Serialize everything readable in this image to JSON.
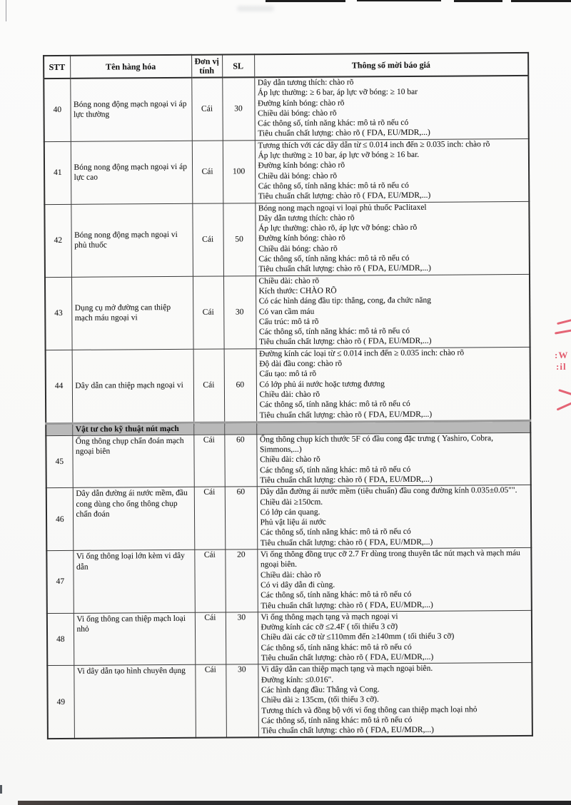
{
  "table": {
    "columns": [
      "STT",
      "Tên hàng hóa",
      "Đơn vị tính",
      "SL",
      "Thông số mời báo giá"
    ],
    "rows": [
      {
        "type": "item",
        "stt": "40",
        "name": "Bóng nong động mạch ngoại vi áp lực thường",
        "unit": "Cái",
        "qty": "30",
        "specs": [
          "Dây dẫn tương thích: chào rõ",
          "Áp lực thường: ≥ 6 bar, áp lực vỡ bóng: ≥ 10 bar",
          "Đường kính bóng: chào rõ",
          "Chiều dài bóng: chào rõ",
          "Các thông số, tính năng khác: mô tả rõ nếu có",
          "Tiêu chuẩn chất lượng: chào rõ ( FDA, EU/MDR,...)"
        ]
      },
      {
        "type": "item",
        "stt": "41",
        "name": "Bóng nong động mạch ngoại vi áp lực cao",
        "unit": "Cái",
        "qty": "100",
        "specs": [
          "Tương thích với các dây dẫn từ ≤ 0.014 inch đến ≥ 0.035 inch: chào rõ",
          "Áp lực thường ≥ 10 bar, áp lực vỡ bóng ≥ 16 bar.",
          "Đường kính bóng: chào rõ",
          "Chiều dài bóng: chào rõ",
          "Các thông số, tính năng khác: mô tả rõ nếu có",
          "Tiêu chuẩn chất lượng: chào rõ ( FDA, EU/MDR,...)"
        ]
      },
      {
        "type": "item",
        "stt": "42",
        "name": "Bóng nong động mạch ngoại vi phủ thuốc",
        "unit": "Cái",
        "qty": "50",
        "specs": [
          "Bóng nong mạch ngoại vi loại phủ thuốc Paclitaxel",
          "Dây dẫn tương thích: chào rõ",
          "Áp lực thường: chào rõ, áp lực vỡ bóng: chào rõ",
          "Đường kính bóng: chào rõ",
          "Chiều dài bóng: chào rõ",
          "Các thông số, tính năng khác: mô tả rõ nếu có",
          "Tiêu chuẩn chất lượng: chào rõ ( FDA, EU/MDR,...)"
        ]
      },
      {
        "type": "item",
        "stt": "43",
        "name": "Dụng cụ mở đường can thiệp mạch máu ngoại vi",
        "unit": "Cái",
        "qty": "30",
        "specs": [
          "Chiều dài: chào rõ",
          "Kích thước: CHÀO RÕ",
          "Có các hình dáng đầu tip: thẳng, cong, đa chức năng",
          "Có van cầm máu",
          "Cấu trúc: mô tả rõ",
          "Các thông số, tính năng khác: mô tả rõ nếu có",
          "Tiêu chuẩn chất lượng: chào rõ ( FDA, EU/MDR,...)"
        ]
      },
      {
        "type": "item",
        "stt": "44",
        "name": "Dây dẫn can thiệp mạch ngoại vi",
        "unit": "Cái",
        "qty": "60",
        "specs": [
          "Đường kính các loại từ ≤ 0.014 inch đến ≥ 0.035 inch: chào rõ",
          "Độ dài đầu cong: chào rõ",
          "Cấu tạo: mô tả rõ",
          "Có lớp phủ ái nước hoặc tương đương",
          "Chiều dài: chào rõ",
          "Các thông số, tính năng khác: mô tả rõ nếu có",
          "Tiêu chuẩn chất lượng: chào rõ ( FDA, EU/MDR,...)"
        ]
      },
      {
        "type": "section",
        "label": "Vật tư cho kỹ thuật nút mạch"
      },
      {
        "type": "item",
        "stt": "45",
        "name": "Ống thông chụp chẩn đoán mạch ngoại biên",
        "unit": "Cái",
        "qty": "60",
        "specs": [
          "Ống thông chụp kích thước 5F có đầu cong đặc trưng ( Yashiro, Cobra, Simmons,...)",
          "Chiều dài: chào rõ",
          "Các thông số, tính năng khác: mô tả rõ nếu có",
          "Tiêu chuẩn chất lượng: chào rõ ( FDA, EU/MDR,...)"
        ]
      },
      {
        "type": "item",
        "stt": "46",
        "name": "Dây dẫn đường ái nước mềm, đầu cong dùng cho ống thông chụp chẩn đoán",
        "unit": "Cái",
        "qty": "60",
        "specs": [
          "Dây dẫn đường ái nước mềm (tiêu chuẩn) đầu cong đường kính 0.035±0.05\"\".",
          "Chiều dài ≥150cm.",
          "Có lớp cản quang.",
          "Phủ vật liệu ái nước",
          "Các thông số, tính năng khác: mô tả rõ nếu có",
          "Tiêu chuẩn chất lượng: chào rõ ( FDA, EU/MDR,...)"
        ]
      },
      {
        "type": "item",
        "stt": "47",
        "name": "Vi ống thông loại lớn kèm vi dây dẫn",
        "unit": "Cái",
        "qty": "20",
        "specs": [
          "Vi ống thông đồng trục cỡ 2.7 Fr dùng trong thuyên tắc nút mạch và mạch máu ngoại biên.",
          "Chiều dài: chào rõ",
          "Có vi dây dẫn đi cùng.",
          "Các thông số, tính năng khác: mô tả rõ nếu có",
          "Tiêu chuẩn chất lượng: chào rõ ( FDA, EU/MDR,...)"
        ]
      },
      {
        "type": "item",
        "stt": "48",
        "name": "Vi ống thông can thiệp mạch loại nhỏ",
        "unit": "Cái",
        "qty": "30",
        "specs": [
          "Vi ống thông mạch tạng và mạch ngoại vi",
          "Đường kính các cỡ ≤2.4F ( tối thiểu 3 cỡ)",
          "Chiều dài các cỡ từ ≤110mm đến ≥140mm ( tối thiểu 3 cỡ)",
          "Các thông số, tính năng khác: mô tả rõ nếu có",
          "Tiêu chuẩn chất lượng: chào rõ ( FDA, EU/MDR,...)"
        ]
      },
      {
        "type": "item",
        "stt": "49",
        "name": "Vi dây dẫn tạo hình chuyên dụng",
        "unit": "Cái",
        "qty": "30",
        "specs": [
          "Vi dây dẫn can thiệp mạch tạng và mạch ngoại biên.",
          "Đường kính: ≤0.016\".",
          "Các hình dạng đầu: Thẳng và Cong.",
          "Chiều dài ≥ 135cm, (tối thiểu 3 cỡ).",
          "Tương thích và đồng bộ với vi ống thông can thiệp mạch loại nhỏ",
          "Các thông số, tính năng khác: mô tả rõ nếu có",
          "Tiêu chuẩn chất lượng: chào rõ ( FDA, EU/MDR,...)"
        ]
      }
    ]
  },
  "artifacts": {
    "red_mark_fragment_1": "≈",
    "red_mark_fragment_2": ":W",
    "red_mark_fragment_3": ":il"
  }
}
